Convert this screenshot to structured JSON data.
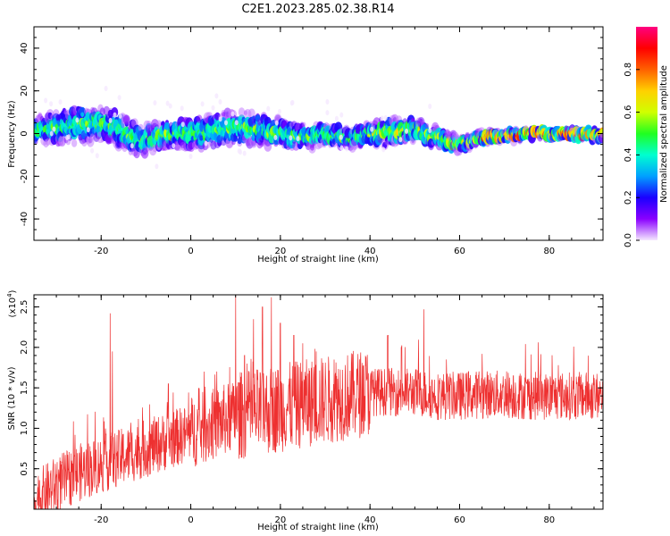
{
  "title": "C2E1.2023.285.02.38.R14",
  "colors": {
    "snr_line": "#ee3030",
    "axes": "#000000"
  },
  "chart_data": [
    {
      "type": "heatmap",
      "xlabel": "Height of straight line (km)",
      "ylabel": "Frequency (Hz)",
      "xlim": [
        -35,
        92
      ],
      "ylim": [
        -50,
        50
      ],
      "x_ticks": [
        -20,
        0,
        20,
        40,
        60,
        80
      ],
      "y_ticks": [
        -40,
        -20,
        0,
        20,
        40
      ],
      "x_tick_labels": [
        "-20",
        "0",
        "20",
        "40",
        "60",
        "80"
      ],
      "y_tick_labels": [
        "-40",
        "-20",
        "0",
        "20",
        "40"
      ],
      "grid": false,
      "ridge_center_hz": [
        [
          -35,
          1
        ],
        [
          -30,
          3
        ],
        [
          -25,
          4
        ],
        [
          -20,
          5
        ],
        [
          -15,
          1
        ],
        [
          -12,
          -3
        ],
        [
          -8,
          -2
        ],
        [
          -4,
          0
        ],
        [
          0,
          0
        ],
        [
          5,
          1
        ],
        [
          10,
          3
        ],
        [
          15,
          2
        ],
        [
          20,
          0
        ],
        [
          25,
          -1
        ],
        [
          30,
          -1
        ],
        [
          35,
          -2
        ],
        [
          40,
          0
        ],
        [
          45,
          1
        ],
        [
          50,
          2
        ],
        [
          55,
          -2
        ],
        [
          58,
          -5
        ],
        [
          62,
          -4
        ],
        [
          66,
          -2
        ],
        [
          70,
          -1
        ],
        [
          75,
          0
        ],
        [
          80,
          0
        ],
        [
          85,
          0
        ],
        [
          92,
          -1
        ]
      ],
      "ridge_halfwidth_hz": [
        [
          -35,
          6
        ],
        [
          -25,
          8
        ],
        [
          -15,
          7
        ],
        [
          -5,
          6
        ],
        [
          5,
          7
        ],
        [
          15,
          7
        ],
        [
          25,
          5
        ],
        [
          35,
          4
        ],
        [
          45,
          6
        ],
        [
          55,
          4
        ],
        [
          60,
          3
        ],
        [
          70,
          2
        ],
        [
          80,
          2
        ],
        [
          92,
          2
        ]
      ],
      "color_scale": {
        "label": "Normalized spectral amplitude",
        "range": [
          0,
          1
        ],
        "ticks": [
          0.0,
          0.2,
          0.4,
          0.6,
          0.8
        ],
        "tick_labels": [
          "0.0",
          "0.2",
          "0.4",
          "0.6",
          "0.8"
        ],
        "colors": [
          "#f5e8ff",
          "#8a00ff",
          "#1a00ff",
          "#00a0ff",
          "#00ffd0",
          "#20ff20",
          "#d0ff00",
          "#ffd000",
          "#ff6000",
          "#ff0000",
          "#ff0080"
        ]
      }
    },
    {
      "type": "line",
      "xlabel": "Height of straight line (km)",
      "ylabel": "SNR (10 * v/v)",
      "y_multiplier_label": "(x10",
      "y_multiplier_exp": "4",
      "y_multiplier_close": ")",
      "xlim": [
        -35,
        92
      ],
      "ylim": [
        0,
        2.65
      ],
      "x_ticks": [
        -20,
        0,
        20,
        40,
        60,
        80
      ],
      "y_ticks": [
        0.5,
        1.0,
        1.5,
        2.0,
        2.5
      ],
      "x_tick_labels": [
        "-20",
        "0",
        "20",
        "40",
        "60",
        "80"
      ],
      "y_tick_labels": [
        "0.5",
        "1.0",
        "1.5",
        "2.0",
        "2.5"
      ],
      "grid": false,
      "trend": [
        [
          -35,
          0.1
        ],
        [
          -30,
          0.3
        ],
        [
          -25,
          0.45
        ],
        [
          -20,
          0.55
        ],
        [
          -15,
          0.65
        ],
        [
          -10,
          0.75
        ],
        [
          -5,
          0.85
        ],
        [
          0,
          0.95
        ],
        [
          5,
          1.05
        ],
        [
          10,
          1.15
        ],
        [
          15,
          1.2
        ],
        [
          20,
          1.25
        ],
        [
          25,
          1.3
        ],
        [
          30,
          1.35
        ],
        [
          35,
          1.4
        ],
        [
          40,
          1.45
        ],
        [
          45,
          1.45
        ],
        [
          50,
          1.45
        ],
        [
          55,
          1.4
        ],
        [
          60,
          1.4
        ],
        [
          65,
          1.42
        ],
        [
          70,
          1.42
        ],
        [
          75,
          1.4
        ],
        [
          80,
          1.4
        ],
        [
          85,
          1.4
        ],
        [
          92,
          1.4
        ]
      ],
      "spikes": [
        [
          -18,
          2.42
        ],
        [
          -17.5,
          1.95
        ],
        [
          -5,
          1.55
        ],
        [
          3,
          1.7
        ],
        [
          10,
          2.65
        ],
        [
          12,
          1.9
        ],
        [
          14,
          2.35
        ],
        [
          16,
          2.5
        ],
        [
          18,
          2.62
        ],
        [
          20,
          2.3
        ],
        [
          23,
          2.15
        ],
        [
          25,
          2.05
        ],
        [
          28,
          1.95
        ],
        [
          32,
          1.85
        ],
        [
          44,
          2.15
        ],
        [
          47,
          2.0
        ],
        [
          52,
          2.47
        ],
        [
          62,
          1.7
        ],
        [
          72,
          1.65
        ],
        [
          79,
          1.6
        ]
      ]
    }
  ]
}
